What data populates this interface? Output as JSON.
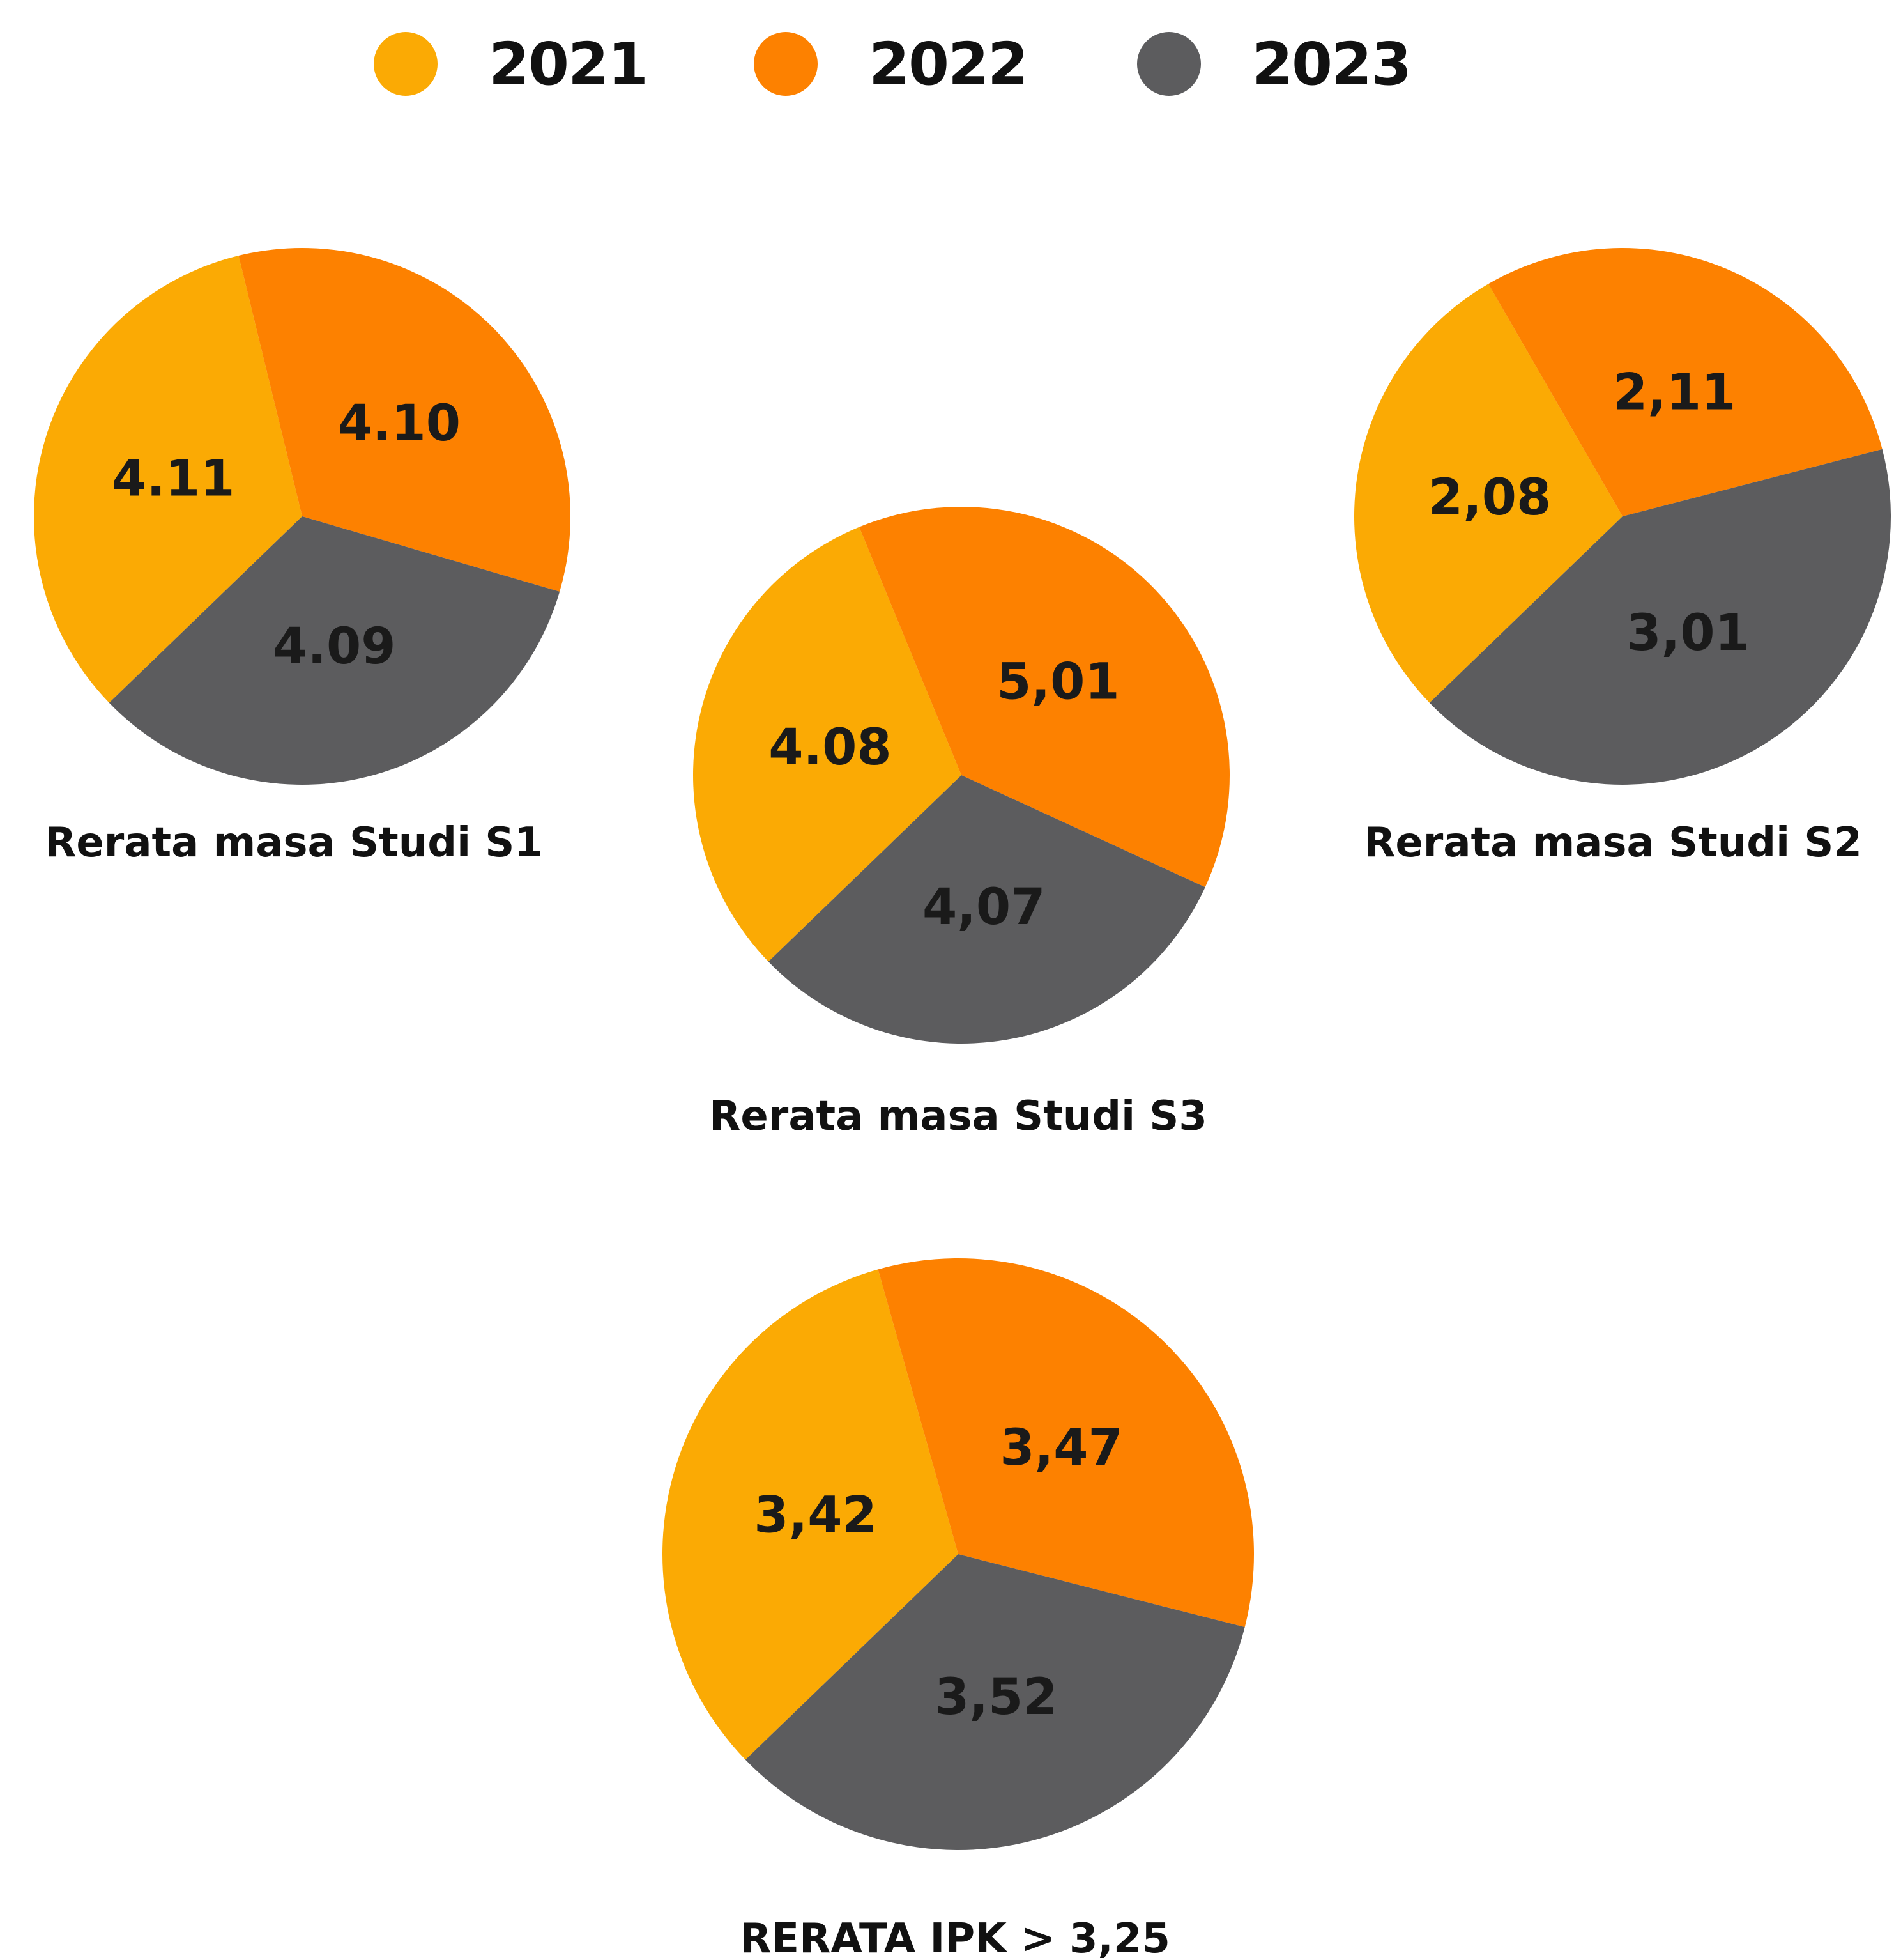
{
  "legend": [
    {
      "label": "2021",
      "color": "#FBAA04"
    },
    {
      "label": "2022",
      "color": "#FD8100"
    },
    {
      "label": "2023",
      "color": "#5C5C5E"
    }
  ],
  "chart_data": [
    {
      "type": "pie",
      "title": "Rerata masa Studi S1",
      "categories": [
        "2021",
        "2022",
        "2023"
      ],
      "values": [
        4.11,
        4.1,
        4.09
      ],
      "value_labels": [
        "4.11",
        "4.10",
        "4.09"
      ],
      "colors": [
        "#FBAA04",
        "#FD8100",
        "#5C5C5E"
      ]
    },
    {
      "type": "pie",
      "title": "Rerata masa Studi S3",
      "categories": [
        "2021",
        "2022",
        "2023"
      ],
      "values": [
        4.08,
        5.01,
        4.07
      ],
      "value_labels": [
        "4.08",
        "5,01",
        "4,07"
      ],
      "colors": [
        "#FBAA04",
        "#FD8100",
        "#5C5C5E"
      ]
    },
    {
      "type": "pie",
      "title": "Rerata masa Studi S2",
      "categories": [
        "2021",
        "2022",
        "2023"
      ],
      "values": [
        2.08,
        2.11,
        3.01
      ],
      "value_labels": [
        "2,08",
        "2,11",
        "3,01"
      ],
      "colors": [
        "#FBAA04",
        "#FD8100",
        "#5C5C5E"
      ]
    },
    {
      "type": "pie",
      "title": "RERATA IPK > 3,25",
      "categories": [
        "2021",
        "2022",
        "2023"
      ],
      "values": [
        3.42,
        3.47,
        3.52
      ],
      "value_labels": [
        "3,42",
        "3,47",
        "3,52"
      ],
      "colors": [
        "#FBAA04",
        "#FD8100",
        "#5C5C5E"
      ]
    }
  ]
}
